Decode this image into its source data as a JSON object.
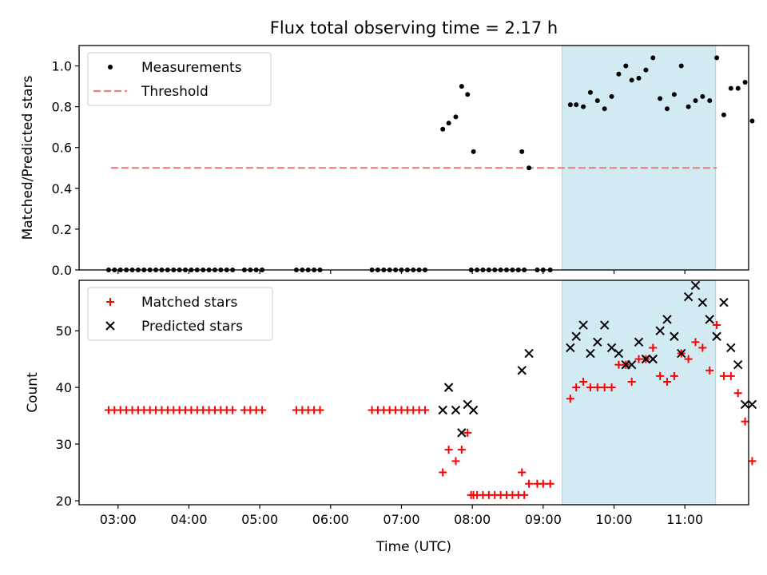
{
  "title": "Flux total observing time = 2.17 h",
  "x_label": "Time (UTC)",
  "x_ticks": [
    "03:00",
    "04:00",
    "05:00",
    "06:00",
    "07:00",
    "08:00",
    "09:00",
    "10:00",
    "11:00"
  ],
  "colors": {
    "matched": "#ff0000",
    "predicted": "#000000",
    "threshold": "#f08080",
    "highlight": "#add8e6",
    "measurement": "#000000"
  },
  "chart_data": [
    {
      "type": "scatter",
      "panel": "top",
      "ylabel": "Matched/Predicted stars",
      "xlim": [
        "02:27",
        "11:54"
      ],
      "ylim": [
        0,
        1.1
      ],
      "y_ticks": [
        "0.0",
        "0.2",
        "0.4",
        "0.6",
        "0.8",
        "1.0"
      ],
      "threshold": 0.5,
      "threshold_span": [
        "02:54",
        "11:27"
      ],
      "highlight_span": [
        "09:16",
        "11:26"
      ],
      "legend": {
        "placement": "top-left",
        "items": [
          "Measurements",
          "Threshold"
        ]
      },
      "series": [
        {
          "name": "Measurements",
          "points": [
            [
              "02:52",
              0
            ],
            [
              "02:57",
              0
            ],
            [
              "03:02",
              0
            ],
            [
              "03:07",
              0
            ],
            [
              "03:12",
              0
            ],
            [
              "03:17",
              0
            ],
            [
              "03:22",
              0
            ],
            [
              "03:27",
              0
            ],
            [
              "03:32",
              0
            ],
            [
              "03:37",
              0
            ],
            [
              "03:42",
              0
            ],
            [
              "03:47",
              0
            ],
            [
              "03:52",
              0
            ],
            [
              "03:57",
              0
            ],
            [
              "04:02",
              0
            ],
            [
              "04:07",
              0
            ],
            [
              "04:12",
              0
            ],
            [
              "04:17",
              0
            ],
            [
              "04:22",
              0
            ],
            [
              "04:27",
              0
            ],
            [
              "04:32",
              0
            ],
            [
              "04:37",
              0
            ],
            [
              "04:47",
              0
            ],
            [
              "04:52",
              0
            ],
            [
              "04:57",
              0
            ],
            [
              "05:02",
              0
            ],
            [
              "05:31",
              0
            ],
            [
              "05:36",
              0
            ],
            [
              "05:41",
              0
            ],
            [
              "05:46",
              0
            ],
            [
              "05:51",
              0
            ],
            [
              "06:35",
              0
            ],
            [
              "06:40",
              0
            ],
            [
              "06:45",
              0
            ],
            [
              "06:50",
              0
            ],
            [
              "06:55",
              0
            ],
            [
              "07:00",
              0
            ],
            [
              "07:05",
              0
            ],
            [
              "07:10",
              0
            ],
            [
              "07:15",
              0
            ],
            [
              "07:20",
              0
            ],
            [
              "07:35",
              0.69
            ],
            [
              "07:40",
              0.72
            ],
            [
              "07:46",
              0.75
            ],
            [
              "07:51",
              0.9
            ],
            [
              "07:56",
              0.86
            ],
            [
              "08:01",
              0.58
            ],
            [
              "07:59",
              0
            ],
            [
              "08:04",
              0
            ],
            [
              "08:09",
              0
            ],
            [
              "08:14",
              0
            ],
            [
              "08:19",
              0
            ],
            [
              "08:24",
              0
            ],
            [
              "08:29",
              0
            ],
            [
              "08:34",
              0
            ],
            [
              "08:39",
              0
            ],
            [
              "08:44",
              0
            ],
            [
              "08:42",
              0.58
            ],
            [
              "08:48",
              0.5
            ],
            [
              "08:55",
              0
            ],
            [
              "09:00",
              0
            ],
            [
              "09:06",
              0
            ],
            [
              "09:23",
              0.81
            ],
            [
              "09:28",
              0.81
            ],
            [
              "09:34",
              0.8
            ],
            [
              "09:40",
              0.87
            ],
            [
              "09:46",
              0.83
            ],
            [
              "09:52",
              0.79
            ],
            [
              "09:58",
              0.85
            ],
            [
              "10:04",
              0.96
            ],
            [
              "10:10",
              1.0
            ],
            [
              "10:15",
              0.93
            ],
            [
              "10:21",
              0.94
            ],
            [
              "10:27",
              0.98
            ],
            [
              "10:33",
              1.04
            ],
            [
              "10:39",
              0.84
            ],
            [
              "10:45",
              0.79
            ],
            [
              "10:51",
              0.86
            ],
            [
              "10:57",
              1.0
            ],
            [
              "11:03",
              0.8
            ],
            [
              "11:09",
              0.83
            ],
            [
              "11:15",
              0.85
            ],
            [
              "11:21",
              0.83
            ],
            [
              "11:27",
              1.04
            ],
            [
              "11:33",
              0.76
            ],
            [
              "11:39",
              0.89
            ],
            [
              "11:45",
              0.89
            ],
            [
              "11:51",
              0.92
            ],
            [
              "11:57",
              0.73
            ]
          ]
        }
      ]
    },
    {
      "type": "scatter",
      "panel": "bottom",
      "xlabel": "Time (UTC)",
      "ylabel": "Count",
      "xlim": [
        "02:27",
        "11:54"
      ],
      "ylim": [
        19.3,
        58.9
      ],
      "y_ticks": [
        "20",
        "30",
        "40",
        "50"
      ],
      "highlight_span": [
        "09:16",
        "11:26"
      ],
      "legend": {
        "placement": "top-left",
        "items": [
          "Matched stars",
          "Predicted stars"
        ]
      },
      "series": [
        {
          "name": "Matched stars",
          "marker": "+",
          "points": [
            [
              "02:52",
              36
            ],
            [
              "02:57",
              36
            ],
            [
              "03:02",
              36
            ],
            [
              "03:07",
              36
            ],
            [
              "03:12",
              36
            ],
            [
              "03:17",
              36
            ],
            [
              "03:22",
              36
            ],
            [
              "03:27",
              36
            ],
            [
              "03:32",
              36
            ],
            [
              "03:37",
              36
            ],
            [
              "03:42",
              36
            ],
            [
              "03:47",
              36
            ],
            [
              "03:52",
              36
            ],
            [
              "03:57",
              36
            ],
            [
              "04:02",
              36
            ],
            [
              "04:07",
              36
            ],
            [
              "04:12",
              36
            ],
            [
              "04:17",
              36
            ],
            [
              "04:22",
              36
            ],
            [
              "04:27",
              36
            ],
            [
              "04:32",
              36
            ],
            [
              "04:37",
              36
            ],
            [
              "04:47",
              36
            ],
            [
              "04:52",
              36
            ],
            [
              "04:57",
              36
            ],
            [
              "05:02",
              36
            ],
            [
              "05:31",
              36
            ],
            [
              "05:36",
              36
            ],
            [
              "05:41",
              36
            ],
            [
              "05:46",
              36
            ],
            [
              "05:51",
              36
            ],
            [
              "06:35",
              36
            ],
            [
              "06:40",
              36
            ],
            [
              "06:45",
              36
            ],
            [
              "06:50",
              36
            ],
            [
              "06:55",
              36
            ],
            [
              "07:00",
              36
            ],
            [
              "07:05",
              36
            ],
            [
              "07:10",
              36
            ],
            [
              "07:15",
              36
            ],
            [
              "07:20",
              36
            ],
            [
              "07:35",
              25
            ],
            [
              "07:40",
              29
            ],
            [
              "07:46",
              27
            ],
            [
              "07:51",
              29
            ],
            [
              "07:56",
              32
            ],
            [
              "08:01",
              21
            ],
            [
              "07:59",
              21
            ],
            [
              "08:04",
              21
            ],
            [
              "08:09",
              21
            ],
            [
              "08:14",
              21
            ],
            [
              "08:19",
              21
            ],
            [
              "08:24",
              21
            ],
            [
              "08:29",
              21
            ],
            [
              "08:34",
              21
            ],
            [
              "08:39",
              21
            ],
            [
              "08:44",
              21
            ],
            [
              "08:42",
              25
            ],
            [
              "08:48",
              23
            ],
            [
              "08:55",
              23
            ],
            [
              "09:00",
              23
            ],
            [
              "09:06",
              23
            ],
            [
              "09:23",
              38
            ],
            [
              "09:28",
              40
            ],
            [
              "09:34",
              41
            ],
            [
              "09:40",
              40
            ],
            [
              "09:46",
              40
            ],
            [
              "09:52",
              40
            ],
            [
              "09:58",
              40
            ],
            [
              "10:04",
              44
            ],
            [
              "10:10",
              44
            ],
            [
              "10:15",
              41
            ],
            [
              "10:21",
              45
            ],
            [
              "10:27",
              45
            ],
            [
              "10:33",
              47
            ],
            [
              "10:39",
              42
            ],
            [
              "10:45",
              41
            ],
            [
              "10:51",
              42
            ],
            [
              "10:57",
              46
            ],
            [
              "11:03",
              45
            ],
            [
              "11:09",
              48
            ],
            [
              "11:15",
              47
            ],
            [
              "11:21",
              43
            ],
            [
              "11:27",
              51
            ],
            [
              "11:33",
              42
            ],
            [
              "11:39",
              42
            ],
            [
              "11:45",
              39
            ],
            [
              "11:51",
              34
            ],
            [
              "11:57",
              27
            ]
          ]
        },
        {
          "name": "Predicted stars",
          "marker": "x",
          "points": [
            [
              "07:35",
              36
            ],
            [
              "07:40",
              40
            ],
            [
              "07:46",
              36
            ],
            [
              "07:51",
              32
            ],
            [
              "07:56",
              37
            ],
            [
              "08:01",
              36
            ],
            [
              "08:42",
              43
            ],
            [
              "08:48",
              46
            ],
            [
              "09:23",
              47
            ],
            [
              "09:28",
              49
            ],
            [
              "09:34",
              51
            ],
            [
              "09:40",
              46
            ],
            [
              "09:46",
              48
            ],
            [
              "09:52",
              51
            ],
            [
              "09:58",
              47
            ],
            [
              "10:04",
              46
            ],
            [
              "10:10",
              44
            ],
            [
              "10:15",
              44
            ],
            [
              "10:21",
              48
            ],
            [
              "10:27",
              45
            ],
            [
              "10:33",
              45
            ],
            [
              "10:39",
              50
            ],
            [
              "10:45",
              52
            ],
            [
              "10:51",
              49
            ],
            [
              "10:57",
              46
            ],
            [
              "11:03",
              56
            ],
            [
              "11:09",
              58
            ],
            [
              "11:15",
              55
            ],
            [
              "11:21",
              52
            ],
            [
              "11:27",
              49
            ],
            [
              "11:33",
              55
            ],
            [
              "11:39",
              47
            ],
            [
              "11:45",
              44
            ],
            [
              "11:51",
              37
            ],
            [
              "11:57",
              37
            ]
          ]
        }
      ]
    }
  ]
}
